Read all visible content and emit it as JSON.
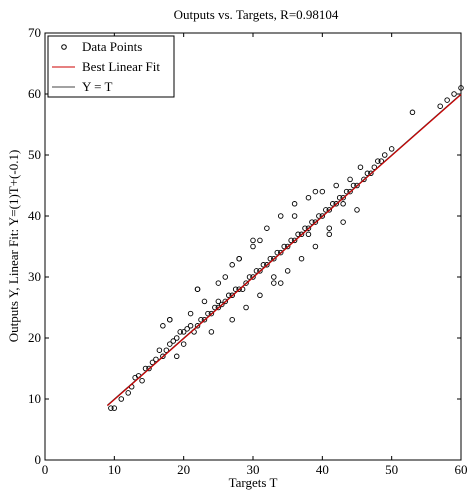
{
  "chart_data": {
    "type": "scatter",
    "title": "Outputs vs. Targets, R=0.98104",
    "xlabel": "Targets T",
    "ylabel": "Outputs Y,  Linear Fit: Y=(1)T+(-0.1)",
    "xlim": [
      0,
      60
    ],
    "ylim": [
      0,
      70
    ],
    "xticks": [
      0,
      10,
      20,
      30,
      40,
      50,
      60
    ],
    "yticks": [
      0,
      10,
      20,
      30,
      40,
      50,
      60,
      70
    ],
    "legend": {
      "placement": "top-left",
      "entries": [
        "Data Points",
        "Best Linear Fit",
        "Y = T"
      ]
    },
    "fit": {
      "slope": 1,
      "intercept": -0.1,
      "x": [
        9,
        60
      ]
    },
    "identity": {
      "x": [
        9,
        60
      ]
    },
    "colors": {
      "fit": "#cc0000",
      "identity": "#444444",
      "points": "#000000"
    },
    "points": {
      "x": [
        9.5,
        10,
        11,
        12,
        12.5,
        13,
        13.5,
        14,
        14.5,
        15,
        15.5,
        16,
        16.5,
        17,
        17,
        17.5,
        18,
        18,
        18.5,
        19,
        19,
        19.5,
        20,
        20,
        20.5,
        21,
        21,
        21.5,
        22,
        22,
        22.5,
        23,
        23,
        23.5,
        24,
        24,
        24.5,
        25,
        25,
        25.5,
        26,
        26,
        26.5,
        27,
        27,
        27.5,
        28,
        28,
        28.5,
        29,
        29,
        29.5,
        30,
        30,
        30.5,
        31,
        31,
        31.5,
        32,
        32,
        32.5,
        33,
        33,
        33.5,
        34,
        34,
        34.5,
        35,
        35,
        35.5,
        36,
        36,
        36.5,
        37,
        37,
        37.5,
        38,
        38,
        38.5,
        39,
        39,
        39.5,
        40,
        40,
        40.5,
        41,
        41,
        41.5,
        42,
        42,
        42.5,
        43,
        43,
        43.5,
        44,
        44,
        44.5,
        45,
        45.5,
        46,
        46.5,
        47,
        47.5,
        48,
        48.5,
        49,
        50,
        53,
        57,
        58,
        59,
        60,
        18,
        22,
        25,
        28,
        31,
        33,
        36,
        39,
        41,
        43,
        45,
        27,
        30,
        34,
        38
      ],
      "y": [
        8.5,
        8.5,
        10,
        11,
        12,
        13.5,
        13.8,
        13,
        15,
        15,
        16,
        16.5,
        18,
        17,
        22,
        18,
        19,
        23,
        19.5,
        20,
        17,
        21,
        21,
        19,
        21.5,
        22,
        24,
        21,
        22,
        28,
        23,
        23,
        26,
        24,
        24,
        21,
        25,
        26,
        29,
        25.5,
        26,
        30,
        27,
        27,
        23,
        28,
        28,
        33,
        28,
        29,
        25,
        30,
        30,
        36,
        31,
        31,
        27,
        32,
        32,
        38,
        33,
        33,
        29,
        34,
        34,
        40,
        35,
        35,
        31,
        36,
        36,
        42,
        37,
        37,
        33,
        38,
        38,
        43,
        39,
        39,
        35,
        40,
        40,
        44,
        41,
        41,
        37,
        42,
        42,
        45,
        43,
        43,
        39,
        44,
        44,
        46,
        45,
        45,
        48,
        46,
        47,
        47,
        48,
        49,
        49,
        50,
        51,
        57,
        58,
        59,
        60,
        61,
        23,
        28,
        25,
        33,
        36,
        30,
        40,
        44,
        38,
        42,
        41,
        32,
        35,
        29,
        37
      ]
    }
  }
}
